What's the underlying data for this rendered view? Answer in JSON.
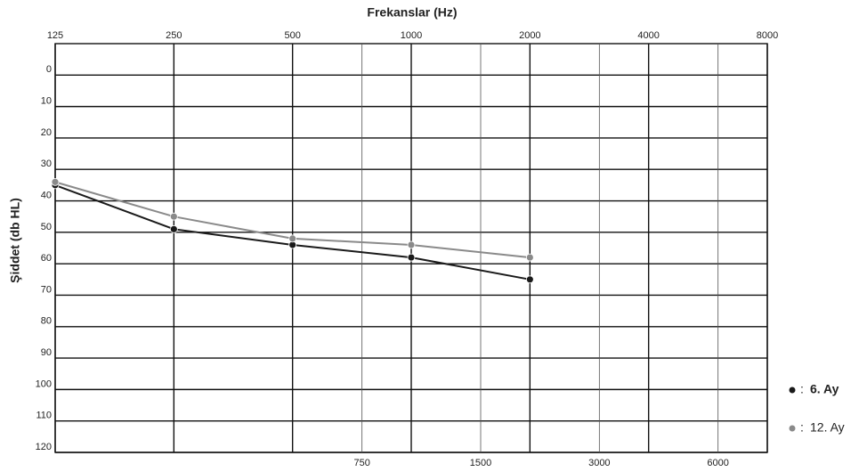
{
  "chart_data": {
    "type": "line",
    "title": "Frekanslar (Hz)",
    "y_label": "Şiddet (db HL)",
    "x": [
      125,
      250,
      500,
      1000,
      2000
    ],
    "series": [
      {
        "name": "6. Ay",
        "color": "#1a1a1a",
        "values": [
          35,
          49,
          54,
          58,
          65
        ]
      },
      {
        "name": "12. Ay",
        "color": "#8a8a8a",
        "values": [
          34,
          45,
          52,
          54,
          58
        ]
      }
    ],
    "x_log": true,
    "xlim": [
      125,
      8000
    ],
    "xticks": [
      125,
      250,
      500,
      1000,
      2000,
      4000,
      8000
    ],
    "xticks_minor": [
      750,
      1500,
      3000,
      6000
    ],
    "ylim": [
      -10,
      120
    ],
    "y_inverted": true,
    "yticks": [
      0,
      10,
      20,
      30,
      40,
      50,
      60,
      70,
      80,
      90,
      100,
      110,
      120
    ],
    "grid": true,
    "legend": "right"
  }
}
